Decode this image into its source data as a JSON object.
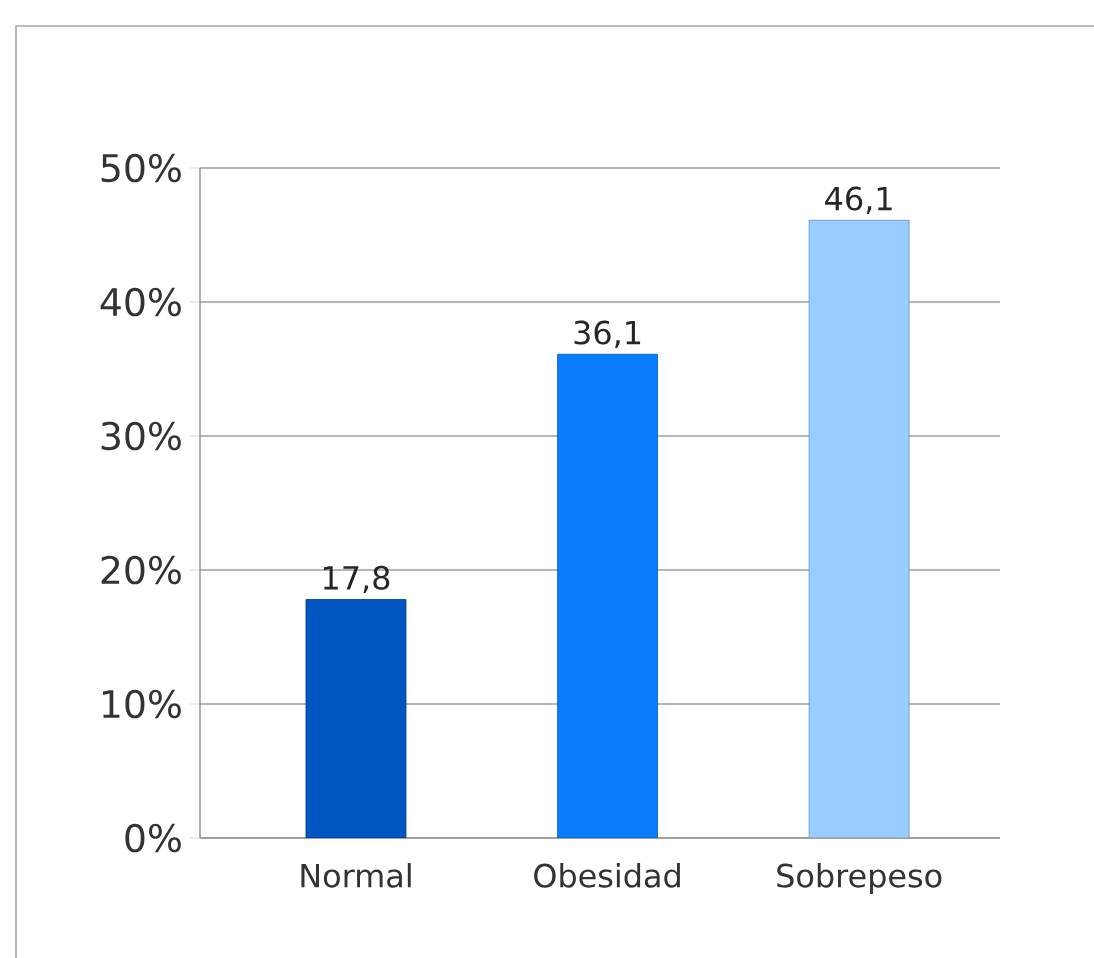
{
  "chart_data": {
    "type": "bar",
    "categories": [
      "Normal",
      "Obesidad",
      "Sobrepeso"
    ],
    "values": [
      17.8,
      36.1,
      46.1
    ],
    "colors": [
      "#0055c0",
      "#0a7dff",
      "#99ccff"
    ],
    "value_labels": [
      "17,8",
      "36,1",
      "46,1"
    ],
    "ylim": [
      0,
      50
    ],
    "yticks": [
      {
        "value": 0,
        "label": "0%"
      },
      {
        "value": 10,
        "label": "10%"
      },
      {
        "value": 20,
        "label": "20%"
      },
      {
        "value": 30,
        "label": "30%"
      },
      {
        "value": 40,
        "label": "40%"
      },
      {
        "value": 50,
        "label": "50%"
      }
    ],
    "grid": "y"
  }
}
